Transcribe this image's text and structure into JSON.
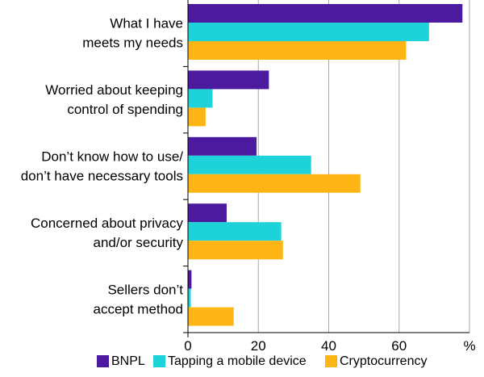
{
  "chart_data": {
    "type": "bar",
    "orientation": "horizontal",
    "title": "",
    "xlabel": "",
    "ylabel": "",
    "unit_label": "%",
    "xlim": [
      0,
      80
    ],
    "x_ticks": [
      0,
      20,
      40,
      60
    ],
    "grid": true,
    "legend_position": "bottom",
    "categories": [
      [
        "What I have",
        "meets my needs"
      ],
      [
        "Worried about keeping",
        "control of spending"
      ],
      [
        "Don’t know how to use/",
        "don’t have necessary tools"
      ],
      [
        "Concerned about privacy",
        "and/or security"
      ],
      [
        "Sellers don’t",
        "accept method"
      ]
    ],
    "series": [
      {
        "name": "BNPL",
        "color": "#4B1A9E",
        "values": [
          78,
          23,
          19.5,
          11,
          1
        ]
      },
      {
        "name": "Tapping a mobile device",
        "color": "#1DD3D9",
        "values": [
          68.5,
          7,
          35,
          26.5,
          0.8
        ]
      },
      {
        "name": "Cryptocurrency",
        "color": "#FDB515",
        "values": [
          62,
          5,
          49,
          27,
          13
        ]
      }
    ]
  }
}
